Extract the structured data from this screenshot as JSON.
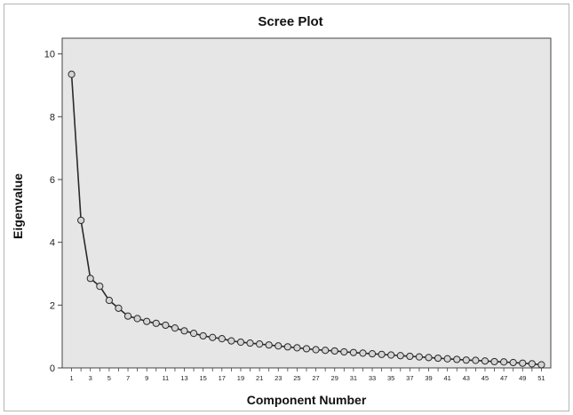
{
  "chart_data": {
    "type": "line",
    "title": "Scree Plot",
    "xlabel": "Component Number",
    "ylabel": "Eigenvalue",
    "ylim": [
      0,
      10.5
    ],
    "yticks": [
      0,
      2,
      4,
      6,
      8,
      10
    ],
    "xlim": [
      0,
      52
    ],
    "xticks": [
      1,
      3,
      5,
      7,
      9,
      11,
      13,
      15,
      17,
      19,
      21,
      23,
      25,
      27,
      29,
      31,
      33,
      35,
      37,
      39,
      41,
      43,
      45,
      47,
      49,
      51
    ],
    "x": [
      1,
      2,
      3,
      4,
      5,
      6,
      7,
      8,
      9,
      10,
      11,
      12,
      13,
      14,
      15,
      16,
      17,
      18,
      19,
      20,
      21,
      22,
      23,
      24,
      25,
      26,
      27,
      28,
      29,
      30,
      31,
      32,
      33,
      34,
      35,
      36,
      37,
      38,
      39,
      40,
      41,
      42,
      43,
      44,
      45,
      46,
      47,
      48,
      49,
      50,
      51
    ],
    "series": [
      {
        "values": [
          9.35,
          4.7,
          2.85,
          2.6,
          2.15,
          1.9,
          1.65,
          1.57,
          1.48,
          1.42,
          1.36,
          1.27,
          1.18,
          1.1,
          1.02,
          0.97,
          0.93,
          0.86,
          0.82,
          0.79,
          0.76,
          0.73,
          0.7,
          0.67,
          0.64,
          0.61,
          0.58,
          0.56,
          0.54,
          0.51,
          0.49,
          0.47,
          0.45,
          0.43,
          0.41,
          0.39,
          0.37,
          0.35,
          0.33,
          0.31,
          0.29,
          0.27,
          0.25,
          0.24,
          0.22,
          0.2,
          0.19,
          0.17,
          0.15,
          0.13,
          0.1
        ]
      }
    ],
    "grid": false,
    "colors": {
      "plot_background": "#e6e6e6",
      "line": "#2a2a2a",
      "marker_fill": "#d4d4d4",
      "marker_stroke": "#2a2a2a"
    }
  }
}
